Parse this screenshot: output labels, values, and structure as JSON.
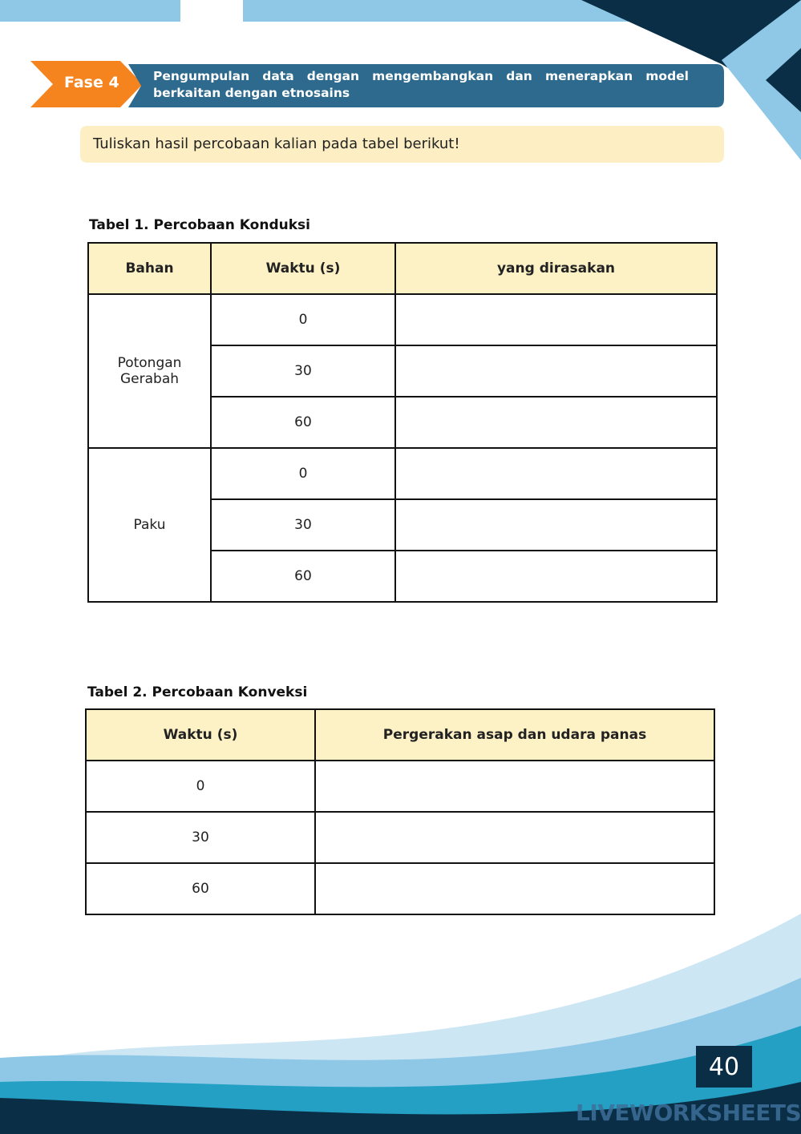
{
  "header": {
    "phase": "Fase 4",
    "title": "Pengumpulan data dengan mengembangkan dan menerapkan model berkaitan dengan etnosains"
  },
  "instruction": "Tuliskan hasil percobaan kalian pada tabel berikut!",
  "table1": {
    "caption": "Tabel 1. Percobaan Konduksi",
    "headers": [
      "Bahan",
      "Waktu (s)",
      "yang dirasakan"
    ],
    "groups": [
      {
        "material": "Potongan Gerabah",
        "times": [
          0,
          30,
          60
        ]
      },
      {
        "material": "Paku",
        "times": [
          0,
          30,
          60
        ]
      }
    ]
  },
  "table2": {
    "caption": "Tabel 2. Percobaan Konveksi",
    "headers": [
      "Waktu (s)",
      "Pergerakan asap dan udara panas"
    ],
    "times": [
      0,
      30,
      60
    ]
  },
  "footer": {
    "page_number": 40,
    "watermark": "LIVEWORKSHEETS"
  }
}
